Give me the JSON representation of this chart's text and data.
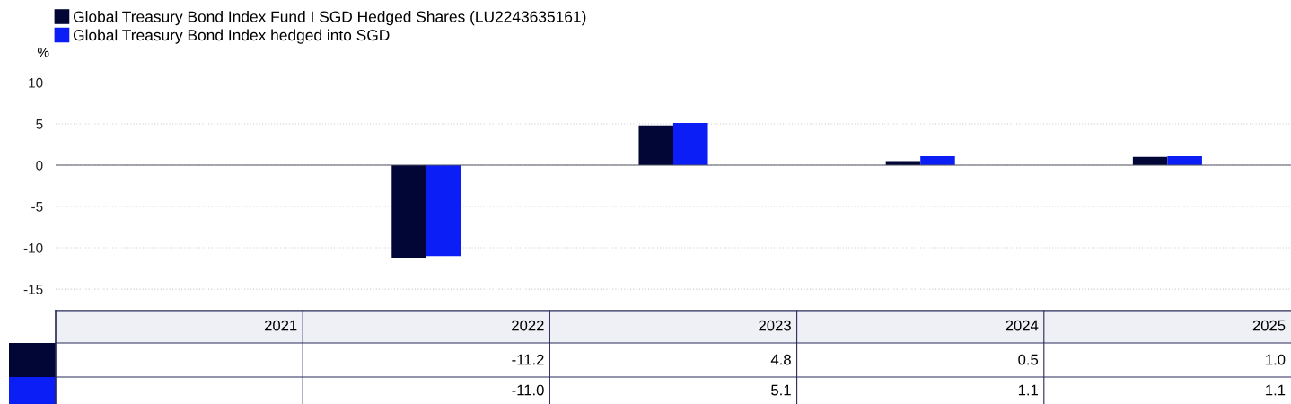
{
  "chart_data": {
    "type": "bar",
    "ylabel": "%",
    "categories": [
      "2021",
      "2022",
      "2023",
      "2024",
      "2025"
    ],
    "series": [
      {
        "name": "Global Treasury Bond Index Fund I SGD Hedged Shares (LU2243635161)",
        "color": "#020636",
        "values": [
          null,
          -11.2,
          4.8,
          0.5,
          1.0
        ],
        "value_labels": [
          null,
          "-11.2",
          "4.8",
          "0.5",
          "1.0"
        ]
      },
      {
        "name": "Global Treasury Bond Index hedged into SGD",
        "color": "#0a1ef5",
        "values": [
          null,
          -11.0,
          5.1,
          1.1,
          1.1
        ],
        "value_labels": [
          null,
          "-11.0",
          "5.1",
          "1.1",
          "1.1"
        ]
      }
    ],
    "ylim": [
      -17.6,
      10
    ],
    "yticks": [
      10,
      5,
      0,
      -5,
      -10,
      -15
    ],
    "grid": "y",
    "legend": "top left"
  }
}
